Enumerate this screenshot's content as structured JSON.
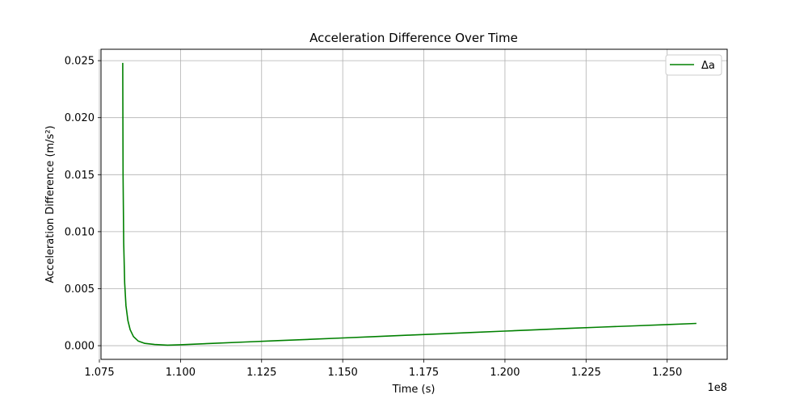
{
  "chart_data": {
    "type": "line",
    "title": "Acceleration Difference Over Time",
    "xlabel": "Time (s)",
    "ylabel": "Acceleration Difference (m/s²)",
    "x_offset_label": "1e8",
    "xlim": [
      1.0755,
      1.2685
    ],
    "ylim": [
      -0.0012,
      0.026
    ],
    "x_ticks": [
      1.075,
      1.1,
      1.125,
      1.15,
      1.175,
      1.2,
      1.225,
      1.25
    ],
    "x_tick_labels": [
      "1.075",
      "1.100",
      "1.125",
      "1.150",
      "1.175",
      "1.200",
      "1.225",
      "1.250"
    ],
    "y_ticks": [
      0.0,
      0.005,
      0.01,
      0.015,
      0.02,
      0.025
    ],
    "y_tick_labels": [
      "0.000",
      "0.005",
      "0.010",
      "0.015",
      "0.020",
      "0.025"
    ],
    "grid": true,
    "legend_position": "top-right",
    "series": [
      {
        "name": "Δa",
        "color": "#008000",
        "x": [
          1.0822,
          1.0823,
          1.0825,
          1.0828,
          1.0832,
          1.0838,
          1.0845,
          1.0855,
          1.087,
          1.089,
          1.092,
          1.096,
          1.1,
          1.11,
          1.12,
          1.13,
          1.14,
          1.15,
          1.16,
          1.17,
          1.18,
          1.19,
          1.2,
          1.21,
          1.22,
          1.23,
          1.24,
          1.25,
          1.259
        ],
        "y": [
          0.0248,
          0.015,
          0.009,
          0.0055,
          0.0035,
          0.0022,
          0.0014,
          0.0008,
          0.0004,
          0.0002,
          0.0001,
          5e-05,
          8e-05,
          0.0002,
          0.00032,
          0.00044,
          0.00056,
          0.00068,
          0.0008,
          0.00092,
          0.00104,
          0.00116,
          0.00128,
          0.0014,
          0.00152,
          0.00163,
          0.00174,
          0.00185,
          0.00195
        ]
      }
    ]
  }
}
